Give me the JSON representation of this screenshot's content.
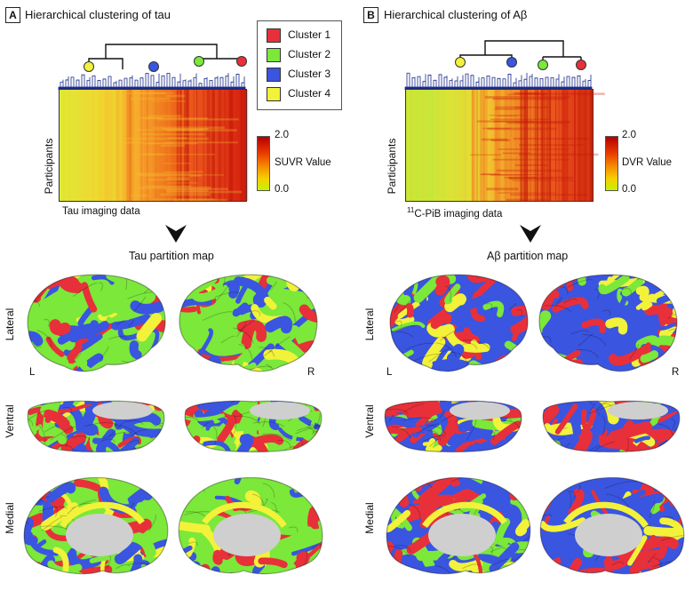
{
  "panels": [
    {
      "letter": "A",
      "title": "Hierarchical clustering of tau",
      "y_label": "Participants",
      "x_caption": "Tau imaging data",
      "colorbar_label": "SUVR Value",
      "colorbar_max": "2.0",
      "colorbar_min": "0.0",
      "map_title": "Tau partition map",
      "hemisphere_left": "L",
      "hemisphere_right": "R"
    },
    {
      "letter": "B",
      "title": "Hierarchical clustering of Aβ",
      "y_label": "Participants",
      "x_caption_sup": "11",
      "x_caption": "C-PiB imaging data",
      "colorbar_label": "DVR Value",
      "colorbar_max": "2.0",
      "colorbar_min": "0.0",
      "map_title": "Aβ partition map",
      "hemisphere_left": "L",
      "hemisphere_right": "R"
    }
  ],
  "legend": [
    {
      "label": "Cluster 1",
      "color": "#e8303a"
    },
    {
      "label": "Cluster 2",
      "color": "#7be83a"
    },
    {
      "label": "Cluster 3",
      "color": "#3a55e0"
    },
    {
      "label": "Cluster 4",
      "color": "#f2f23a"
    }
  ],
  "views": [
    "Lateral",
    "Ventral",
    "Medial"
  ],
  "colors": {
    "cluster1": "#e8303a",
    "cluster2": "#7be83a",
    "cluster3": "#3a55e0",
    "cluster4": "#f2f23a",
    "medial_wall": "#cfcfcf",
    "dendrogram": "#1a2a8a"
  }
}
